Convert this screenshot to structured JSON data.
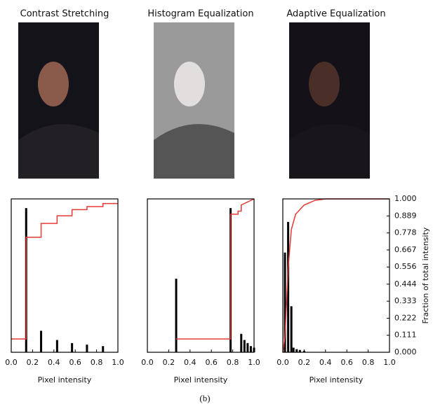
{
  "chart_data": [
    {
      "type": "histogram",
      "title": "Contrast Stretching",
      "xlabel": "Pixel intensity",
      "x": [
        0.14,
        0.28,
        0.43,
        0.57,
        0.71,
        0.86
      ],
      "values": [
        0.94,
        0.14,
        0.08,
        0.06,
        0.05,
        0.04
      ],
      "color": "#000000",
      "cdf_x": [
        0,
        0.14,
        0.14,
        0.28,
        0.28,
        0.43,
        0.43,
        0.57,
        0.57,
        0.71,
        0.71,
        0.86,
        0.86,
        1
      ],
      "cdf_values": [
        0.087,
        0.087,
        0.75,
        0.75,
        0.84,
        0.84,
        0.89,
        0.89,
        0.93,
        0.93,
        0.95,
        0.95,
        0.97,
        0.97
      ],
      "line_color": "#e53935",
      "xlim": [
        0,
        1
      ],
      "ylim": [
        0,
        1
      ],
      "y2lim": [
        0,
        1
      ],
      "xticks": [
        {
          "value": 0,
          "label": "0.0"
        },
        0.2,
        0.4,
        0.6,
        0.8,
        {
          "value": 1,
          "label": "1.0"
        }
      ]
    },
    {
      "type": "histogram",
      "title": "Histogram Equalization",
      "xlabel": "Pixel intensity",
      "x": [
        0.27,
        0.78,
        0.88,
        0.91,
        0.94,
        0.97,
        1
      ],
      "values": [
        0.48,
        0.94,
        0.12,
        0.08,
        0.06,
        0.04,
        0.03
      ],
      "color": "#000000",
      "cdf_x": [
        0.27,
        0.78,
        0.78,
        0.85,
        0.85,
        0.88,
        0.88,
        1
      ],
      "cdf_values": [
        0.087,
        0.087,
        0.9,
        0.9,
        0.92,
        0.92,
        0.96,
        1
      ],
      "line_color": "#e53935",
      "xlim": [
        0,
        1
      ],
      "ylim": [
        0,
        1
      ],
      "y2lim": [
        0,
        1
      ],
      "xticks": [
        {
          "value": 0,
          "label": "0.0"
        },
        0.2,
        0.4,
        0.6,
        0.8,
        {
          "value": 1,
          "label": "1.0"
        }
      ]
    },
    {
      "type": "histogram",
      "title": "Adaptive Equalization",
      "xlabel": "Pixel intensity",
      "y2label": "Fraction of total intensity",
      "x": [
        0.02,
        0.05,
        0.08,
        0.1,
        0.13,
        0.16,
        0.2
      ],
      "values": [
        0.65,
        0.85,
        0.3,
        0.03,
        0.02,
        0.015,
        0.01
      ],
      "color": "#000000",
      "cdf_x": [
        0,
        0.02,
        0.05,
        0.08,
        0.12,
        0.2,
        0.3,
        0.4,
        1
      ],
      "cdf_values": [
        0,
        0.1,
        0.55,
        0.8,
        0.9,
        0.96,
        0.99,
        1,
        1
      ],
      "line_color": "#e53935",
      "xlim": [
        0,
        1
      ],
      "ylim": [
        0,
        1
      ],
      "y2lim": [
        0,
        1
      ],
      "xticks": [
        {
          "value": 0,
          "label": "0.0"
        },
        0.2,
        0.4,
        0.6,
        0.8,
        {
          "value": 1,
          "label": "1.0"
        }
      ],
      "y2ticks": [
        {
          "value": 0,
          "label": "0.000"
        },
        0.111,
        0.222,
        0.333,
        0.444,
        0.556,
        0.667,
        0.778,
        0.889,
        {
          "value": 1,
          "label": "1.000"
        }
      ]
    }
  ],
  "caption": "(b)"
}
